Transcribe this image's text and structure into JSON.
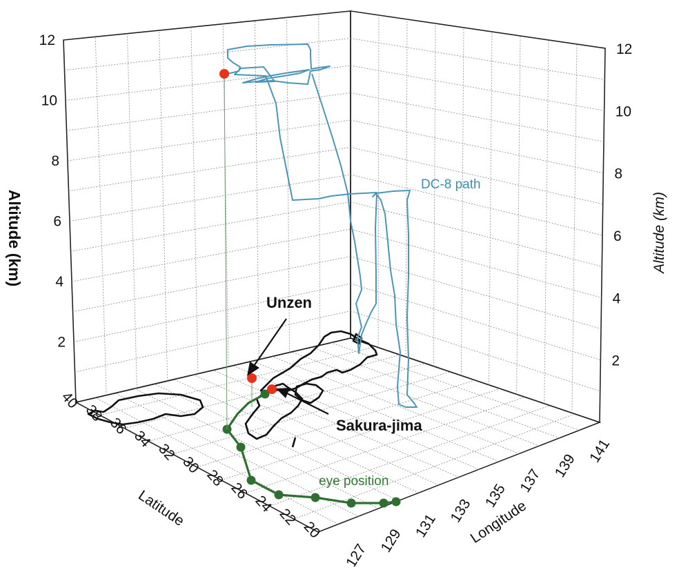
{
  "chart_data": {
    "type": "line",
    "projection": "3d",
    "axes": {
      "altitude": {
        "title_left": "Altitude  (km)",
        "title_right": "Altitude (km)",
        "range": [
          0,
          12
        ],
        "ticks_left": [
          "12",
          "10",
          "8",
          "6",
          "4",
          "2"
        ],
        "ticks_right": [
          "12",
          "10",
          "8",
          "6",
          "4",
          "2"
        ]
      },
      "latitude": {
        "title": "Latitude",
        "range": [
          20,
          40
        ],
        "ticks": [
          "40",
          "38",
          "36",
          "34",
          "32",
          "30",
          "28",
          "26",
          "24",
          "22",
          "20"
        ]
      },
      "longitude": {
        "title": "Longitude",
        "range": [
          127,
          141
        ],
        "ticks": [
          "127",
          "129",
          "131",
          "133",
          "135",
          "137",
          "139",
          "141"
        ]
      }
    },
    "grid": true,
    "series": [
      {
        "name": "DC-8 path",
        "color": "#4a96b8",
        "note": "flight track of DC-8 aircraft"
      },
      {
        "name": "eye position",
        "color": "#2f6f2f",
        "marker": "circle"
      }
    ],
    "annotations": [
      {
        "text": "Unzen",
        "color": "#111111",
        "marker_color": "#e8321c"
      },
      {
        "text": "Sakura-jima",
        "color": "#111111",
        "marker_color": "#e8321c"
      }
    ]
  },
  "labels": {
    "dc8": "DC-8 path",
    "eye": "eye position",
    "unzen": "Unzen",
    "sakura": "Sakura-jima"
  },
  "colors": {
    "dc8": "#4a96b8",
    "eye": "#2f6f2f",
    "marker": "#e8321c",
    "coast": "#111111"
  }
}
